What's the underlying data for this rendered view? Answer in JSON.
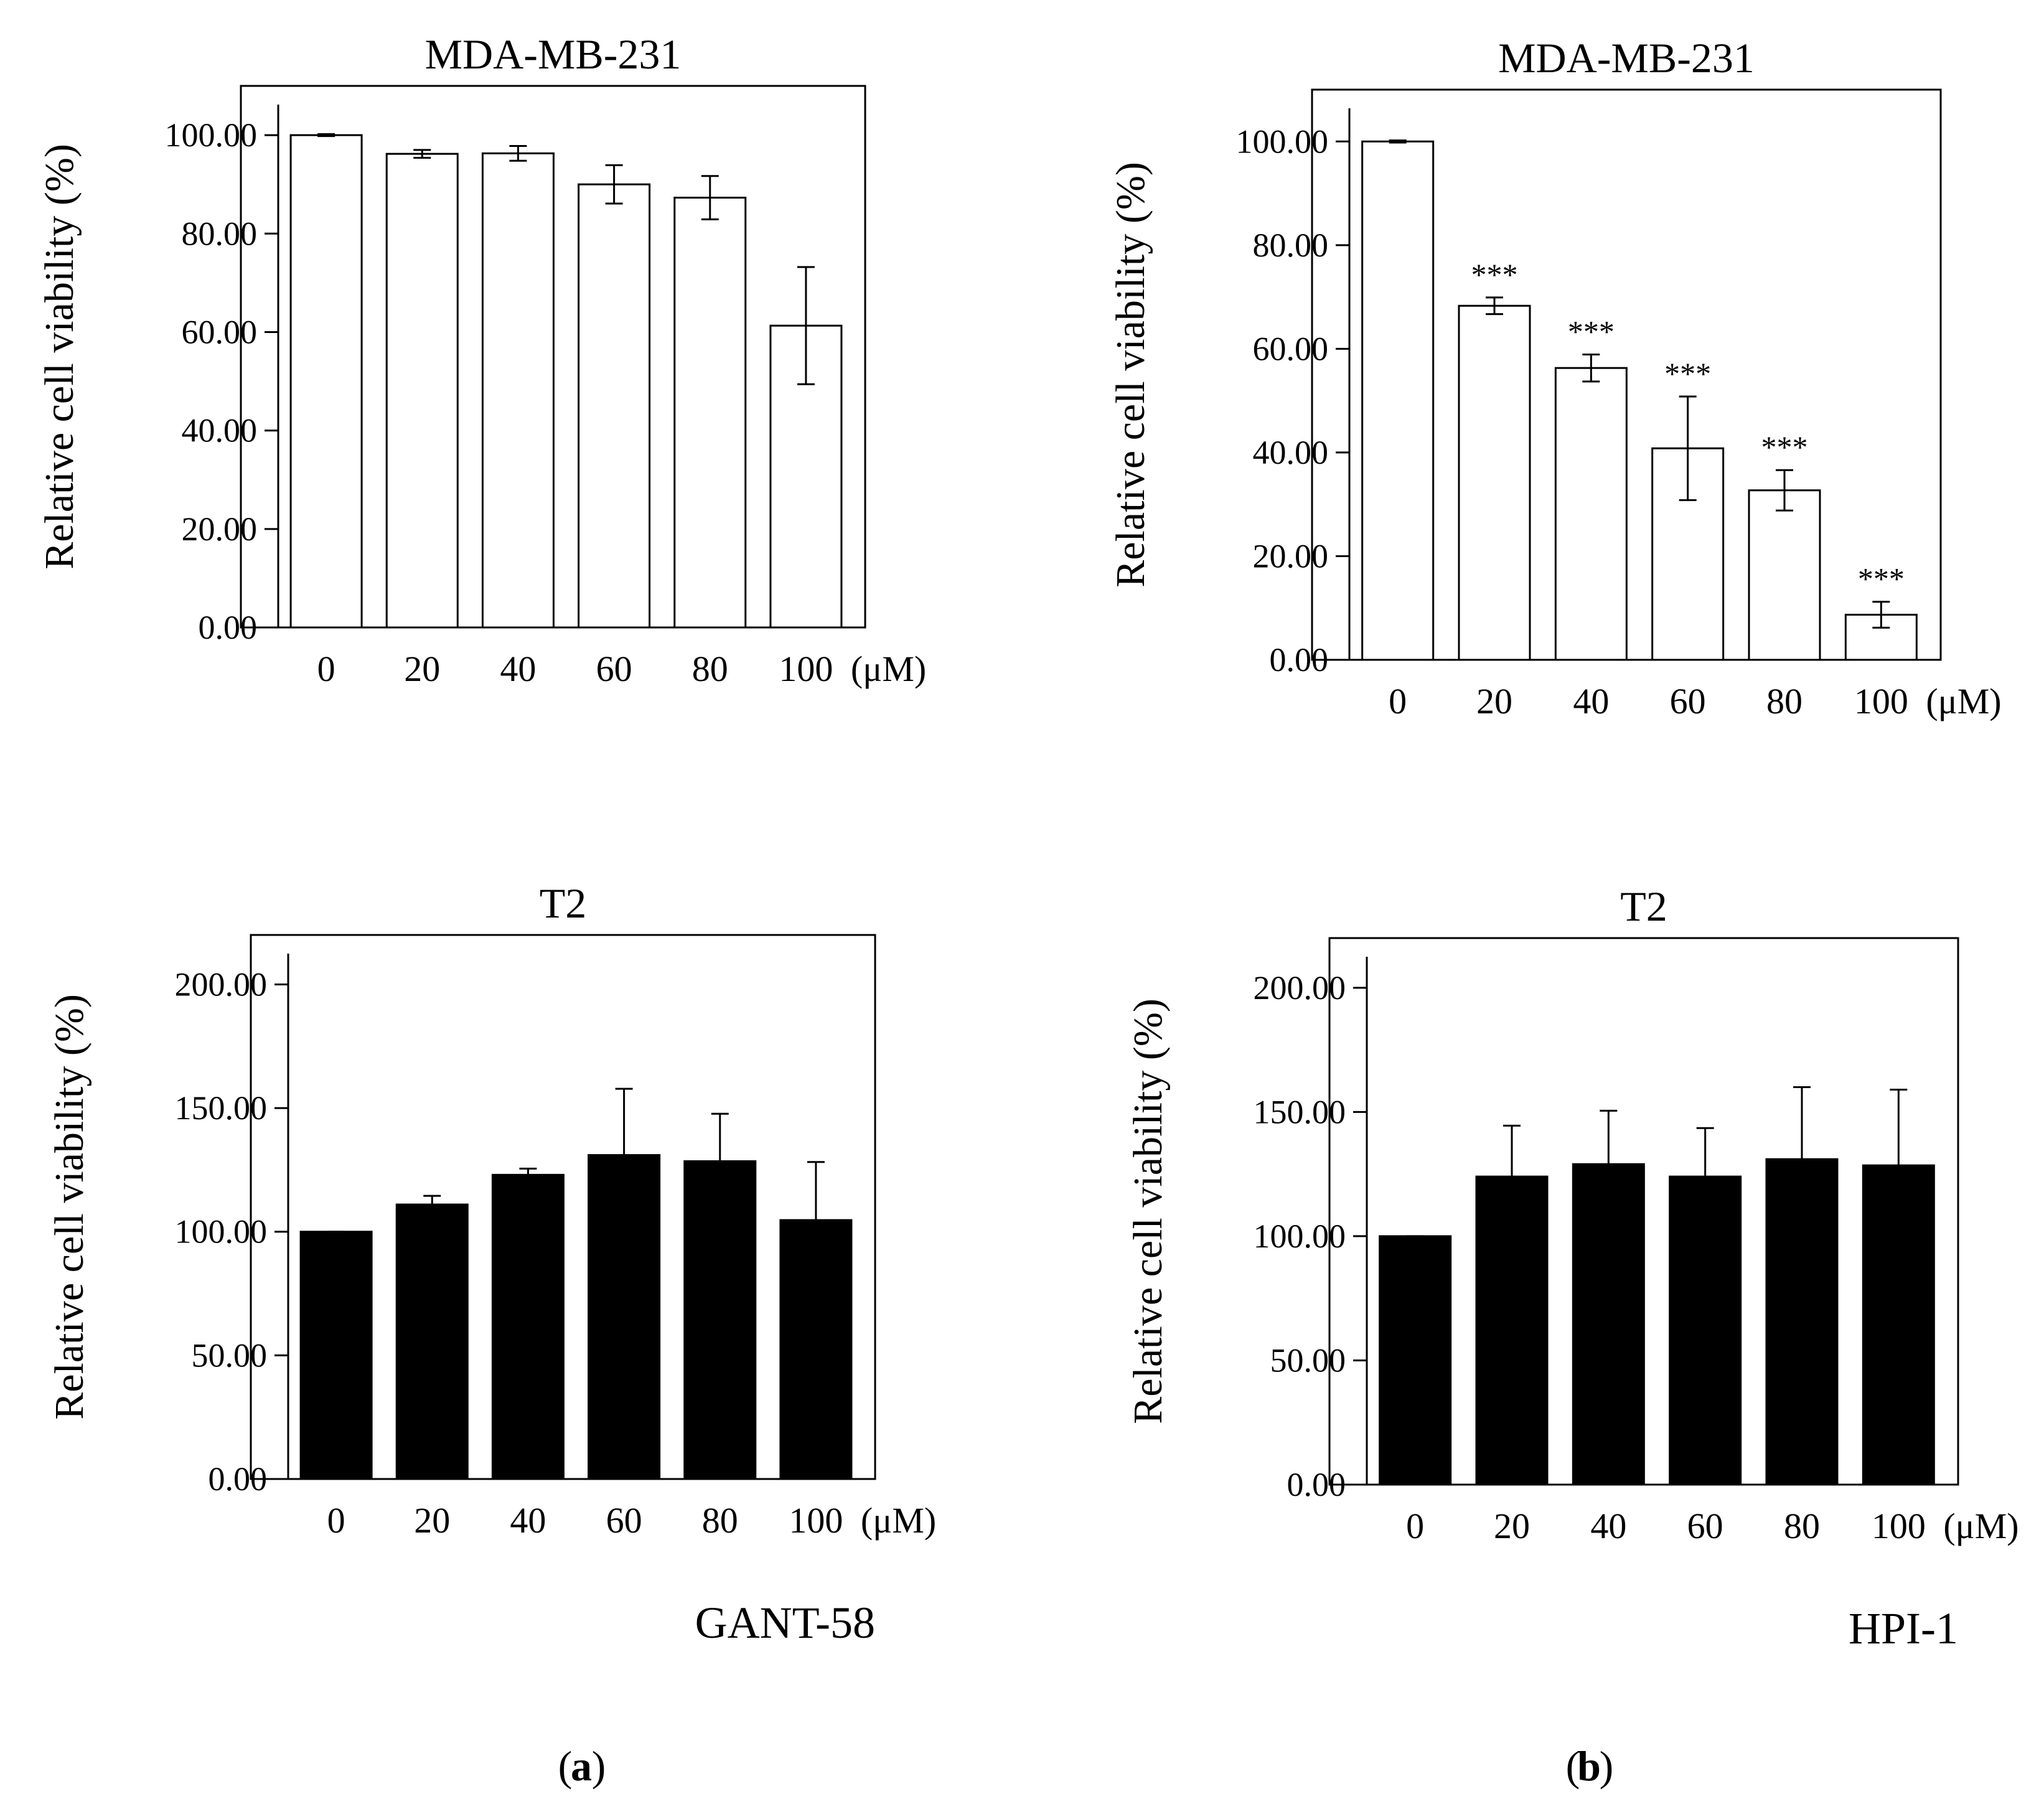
{
  "figure": {
    "panel_labels": [
      "a",
      "b"
    ]
  },
  "chart_data": [
    {
      "type": "bar",
      "panel": "a",
      "title": "MDA-MB-231",
      "ylabel": "Relative cell viability (%)",
      "xunit": "(μM)",
      "xlabel": "",
      "categories": [
        "0",
        "20",
        "40",
        "60",
        "80",
        "100"
      ],
      "yticks": [
        "0.00",
        "20.00",
        "40.00",
        "60.00",
        "80.00",
        "100.00"
      ],
      "ylim": [
        0,
        110
      ],
      "bar_fill": "#ffffff",
      "series": [
        {
          "values": [
            100.0,
            96.2,
            96.3,
            90.0,
            87.3,
            61.3
          ],
          "errors": [
            0.2,
            0.8,
            1.5,
            3.9,
            4.4,
            11.9
          ]
        }
      ],
      "significance": [
        "",
        "",
        "",
        "",
        "",
        ""
      ],
      "error_style": "both",
      "grid": false
    },
    {
      "type": "bar",
      "panel": "b",
      "title": "MDA-MB-231",
      "ylabel": "Relative cell viability (%)",
      "xunit": "(μM)",
      "xlabel": "",
      "categories": [
        "0",
        "20",
        "40",
        "60",
        "80",
        "100"
      ],
      "yticks": [
        "0.00",
        "20.00",
        "40.00",
        "60.00",
        "80.00",
        "100.00"
      ],
      "ylim": [
        0,
        110
      ],
      "bar_fill": "#ffffff",
      "series": [
        {
          "values": [
            100.0,
            68.3,
            56.3,
            40.8,
            32.7,
            8.7
          ],
          "errors": [
            0.2,
            1.6,
            2.6,
            10.0,
            3.9,
            2.5
          ]
        }
      ],
      "significance": [
        "",
        "***",
        "***",
        "***",
        "***",
        "***"
      ],
      "error_style": "both",
      "grid": false
    },
    {
      "type": "bar",
      "panel": "a",
      "title": "T2",
      "ylabel": "Relative cell viability (%)",
      "xunit": "(μM)",
      "xlabel": "GANT-58",
      "categories": [
        "0",
        "20",
        "40",
        "60",
        "80",
        "100"
      ],
      "yticks": [
        "0.00",
        "50.00",
        "100.00",
        "150.00",
        "200.00"
      ],
      "ylim": [
        0,
        220
      ],
      "bar_fill": "#000000",
      "series": [
        {
          "values": [
            100.0,
            111.0,
            123.0,
            131.0,
            128.5,
            104.7
          ],
          "errors": [
            0.0,
            3.5,
            2.5,
            26.8,
            19.2,
            23.5
          ]
        }
      ],
      "significance": [
        "",
        "",
        "",
        "",
        "",
        ""
      ],
      "error_style": "upper",
      "grid": false
    },
    {
      "type": "bar",
      "panel": "b",
      "title": "T2",
      "ylabel": "Relative cell viability (%)",
      "xunit": "(μM)",
      "xlabel": "HPI-1",
      "categories": [
        "0",
        "20",
        "40",
        "60",
        "80",
        "100"
      ],
      "yticks": [
        "0.00",
        "50.00",
        "100.00",
        "150.00",
        "200.00"
      ],
      "ylim": [
        0,
        220
      ],
      "bar_fill": "#000000",
      "series": [
        {
          "values": [
            100.0,
            124.0,
            129.0,
            124.0,
            131.0,
            128.5
          ],
          "errors": [
            0.0,
            20.5,
            21.5,
            19.5,
            29.0,
            30.5
          ]
        }
      ],
      "significance": [
        "",
        "",
        "",
        "",
        "",
        ""
      ],
      "error_style": "upper",
      "grid": false
    }
  ]
}
